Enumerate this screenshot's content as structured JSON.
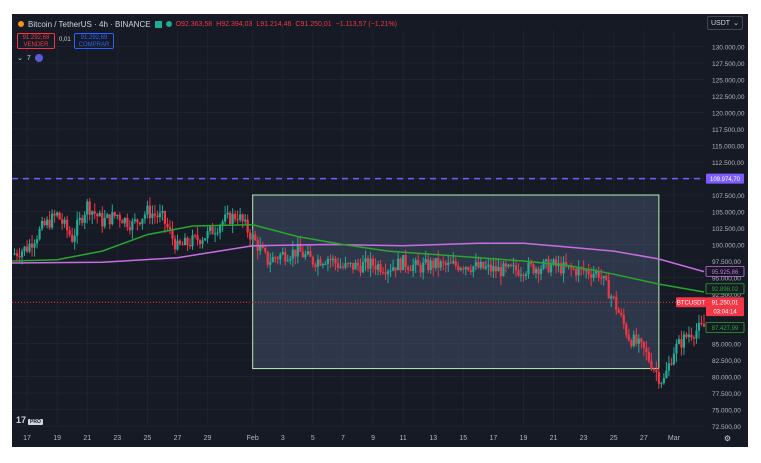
{
  "header": {
    "symbol": "Bitcoin / TetherUS · 4h · BINANCE",
    "ohlc": {
      "open": "O92.363,58",
      "high": "H92.394,03",
      "low": "L91.214,46",
      "close": "C91.250,01",
      "change": "−1.113,57 (−1,21%)"
    }
  },
  "trade": {
    "sell_price": "91.292,68",
    "sell_label": "VENDER",
    "spread": "0,01",
    "buy_price": "91.292,69",
    "buy_label": "COMPRAR"
  },
  "indicators_toggle": "7",
  "currency_button": "USDT",
  "logo_text": "17",
  "logo_badge": "PRO",
  "colors": {
    "background": "#161a25",
    "up": "#22ab94",
    "down": "#f23645",
    "ma_green": "#2aa52f",
    "ma_violet": "#c86de0",
    "level_line": "#7c5cff",
    "box_border": "#b6f0b5",
    "box_fill": "#4b5a78"
  },
  "chart_data": {
    "type": "candlestick",
    "ylim": [
      72500,
      132500
    ],
    "y_ticks": [
      "130.000,00",
      "127.500,00",
      "125.000,00",
      "122.500,00",
      "120.000,00",
      "117.500,00",
      "115.000,00",
      "112.500,00",
      "110.000,00",
      "107.500,00",
      "105.000,00",
      "102.500,00",
      "100.000,00",
      "97.500,00",
      "95.000,00",
      "92.500,00",
      "90.000,00",
      "87.500,00",
      "85.000,00",
      "82.500,00",
      "80.000,00",
      "77.500,00",
      "75.000,00",
      "72.500,00"
    ],
    "y_tick_values": [
      130000,
      127500,
      125000,
      122500,
      120000,
      117500,
      115000,
      112500,
      110000,
      107500,
      105000,
      102500,
      100000,
      97500,
      95000,
      92500,
      90000,
      87500,
      85000,
      82500,
      80000,
      77500,
      75000,
      72500
    ],
    "x_ticks": [
      "17",
      "19",
      "21",
      "23",
      "25",
      "27",
      "29",
      "Feb",
      "3",
      "5",
      "7",
      "9",
      "11",
      "13",
      "15",
      "17",
      "19",
      "21",
      "23",
      "25",
      "27",
      "Mar"
    ],
    "x_tick_days": [
      0,
      2,
      4,
      6,
      8,
      10,
      12,
      15,
      17,
      19,
      21,
      23,
      25,
      27,
      29,
      31,
      33,
      35,
      37,
      39,
      41,
      43
    ],
    "x_days_shown": [
      -1,
      45
    ],
    "close_anchors": [
      [
        -1,
        98500
      ],
      [
        0,
        99500
      ],
      [
        1,
        102500
      ],
      [
        2,
        104500
      ],
      [
        3,
        101000
      ],
      [
        4,
        106000
      ],
      [
        5,
        103500
      ],
      [
        6,
        104500
      ],
      [
        7,
        103000
      ],
      [
        8,
        105000
      ],
      [
        9,
        104000
      ],
      [
        10,
        99500
      ],
      [
        11,
        100500
      ],
      [
        12,
        101500
      ],
      [
        13,
        103500
      ],
      [
        14,
        104500
      ],
      [
        15,
        101000
      ],
      [
        16,
        97500
      ],
      [
        17,
        98500
      ],
      [
        18,
        99000
      ],
      [
        19,
        97500
      ],
      [
        20,
        98000
      ],
      [
        21,
        96500
      ],
      [
        22,
        96800
      ],
      [
        23,
        97000
      ],
      [
        24,
        96500
      ],
      [
        25,
        97300
      ],
      [
        26,
        96500
      ],
      [
        27,
        97000
      ],
      [
        28,
        96700
      ],
      [
        29,
        97000
      ],
      [
        30,
        96500
      ],
      [
        31,
        96200
      ],
      [
        32,
        96000
      ],
      [
        33,
        96300
      ],
      [
        34,
        96600
      ],
      [
        35,
        96800
      ],
      [
        36,
        96200
      ],
      [
        37,
        96000
      ],
      [
        38,
        95700
      ],
      [
        39,
        91500
      ],
      [
        40,
        86000
      ],
      [
        41,
        84000
      ],
      [
        42,
        80000
      ],
      [
        42.3,
        79200
      ],
      [
        43,
        84000
      ],
      [
        44,
        86500
      ],
      [
        45,
        87500
      ]
    ],
    "ma_green": [
      [
        -1,
        97500
      ],
      [
        2,
        97700
      ],
      [
        5,
        99000
      ],
      [
        8,
        101500
      ],
      [
        11,
        102800
      ],
      [
        15,
        103000
      ],
      [
        18,
        101200
      ],
      [
        21,
        100000
      ],
      [
        24,
        99000
      ],
      [
        27,
        98500
      ],
      [
        30,
        98000
      ],
      [
        33,
        97500
      ],
      [
        36,
        96800
      ],
      [
        39,
        95500
      ],
      [
        42,
        94000
      ],
      [
        45,
        92800
      ]
    ],
    "ma_violet": [
      [
        -1,
        97200
      ],
      [
        5,
        97300
      ],
      [
        10,
        98000
      ],
      [
        15,
        99800
      ],
      [
        20,
        100000
      ],
      [
        25,
        99800
      ],
      [
        30,
        100200
      ],
      [
        33,
        100200
      ],
      [
        36,
        99600
      ],
      [
        39,
        99000
      ],
      [
        42,
        97800
      ],
      [
        45,
        95900
      ]
    ],
    "level_price": 109974.7,
    "box": {
      "x0": 15,
      "x1": 42,
      "y0": 107500,
      "y1": 81200
    },
    "price_labels": [
      {
        "text": "109.974,70",
        "price": 109974.7,
        "style": "violet"
      },
      {
        "text": "95.925,86",
        "price": 95925.86,
        "style": "outline-violet"
      },
      {
        "text": "92.898,02",
        "price": 93300.0,
        "style": "outline-green"
      },
      {
        "text": "BTCUSDT",
        "price": 91250.01,
        "style": "red-badge"
      },
      {
        "text": "91.250,01",
        "price": 91250.01,
        "style": "red"
      },
      {
        "text": "03:04:14",
        "price": 89900.0,
        "style": "red-sub"
      },
      {
        "text": "87.427,99",
        "price": 87427.99,
        "style": "outline-green"
      }
    ]
  }
}
